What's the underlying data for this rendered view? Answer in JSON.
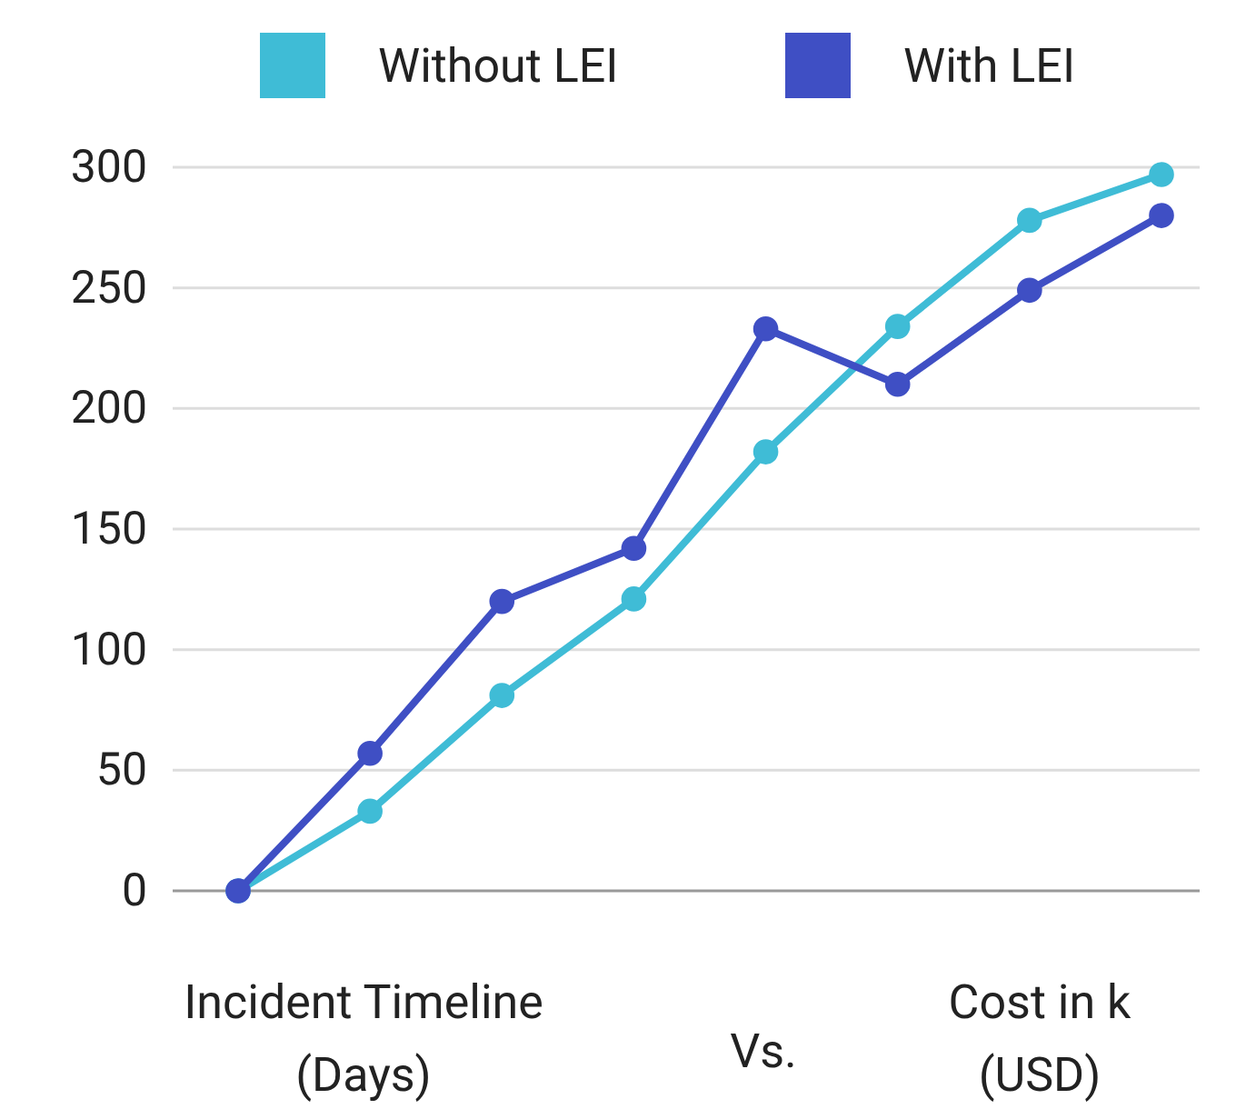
{
  "chart_data": {
    "type": "line",
    "categories": [
      null,
      null,
      null,
      null,
      null,
      null,
      null,
      null
    ],
    "series": [
      {
        "name": "Without LEI",
        "color": "#3fbcd6",
        "values": [
          0,
          33,
          81,
          121,
          182,
          234,
          278,
          297
        ]
      },
      {
        "name": "With LEI",
        "color": "#3f4fc4",
        "values": [
          0,
          57,
          120,
          142,
          233,
          210,
          249,
          280
        ]
      }
    ],
    "ylim": [
      0,
      300
    ],
    "yticks": [
      0,
      50,
      100,
      150,
      200,
      250,
      300
    ],
    "grid": "y",
    "legend": "top",
    "marker": "circle",
    "line_style": "solid",
    "annotations": [
      "Incident Timeline (Days)",
      "Vs.",
      "Cost in k (USD)"
    ]
  }
}
